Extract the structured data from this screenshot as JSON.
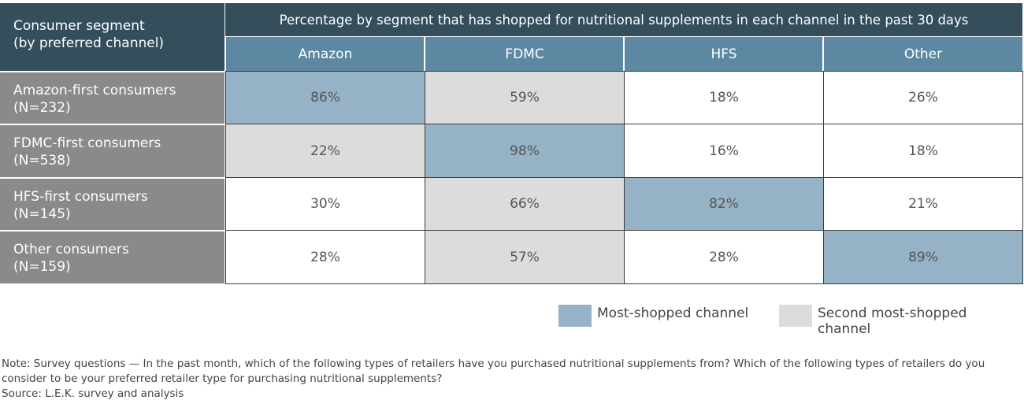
{
  "chart_data": {
    "type": "table",
    "corner_label": [
      "Consumer segment",
      "(by preferred channel)"
    ],
    "title": "Percentage by segment that has shopped for nutritional supplements in each channel in the past 30 days",
    "columns": [
      "Amazon",
      "FDMC",
      "HFS",
      "Other"
    ],
    "rows": [
      {
        "label": "Amazon-first consumers",
        "n": "(N=232)",
        "values": [
          "86%",
          "59%",
          "18%",
          "26%"
        ],
        "highlight": [
          "most",
          "second",
          "",
          ""
        ]
      },
      {
        "label": "FDMC-first consumers",
        "n": "(N=538)",
        "values": [
          "22%",
          "98%",
          "16%",
          "18%"
        ],
        "highlight": [
          "second",
          "most",
          "",
          ""
        ]
      },
      {
        "label": "HFS-first consumers",
        "n": "(N=145)",
        "values": [
          "30%",
          "66%",
          "82%",
          "21%"
        ],
        "highlight": [
          "",
          "second",
          "most",
          ""
        ]
      },
      {
        "label": "Other consumers",
        "n": "(N=159)",
        "values": [
          "28%",
          "57%",
          "28%",
          "89%"
        ],
        "highlight": [
          "",
          "second",
          "",
          "most"
        ]
      }
    ],
    "legend": [
      {
        "key": "most",
        "label": "Most-shopped channel",
        "color": "#96b2c6"
      },
      {
        "key": "second",
        "label": "Second most-shopped channel",
        "color": "#dcdcdc"
      }
    ]
  },
  "note": "Note: Survey questions — In the past month, which of the following types of retailers have you purchased nutritional supplements from? Which of the following types of retailers do you consider to be your preferred retailer type for purchasing nutritional supplements?",
  "source": "Source: L.E.K. survey and analysis"
}
